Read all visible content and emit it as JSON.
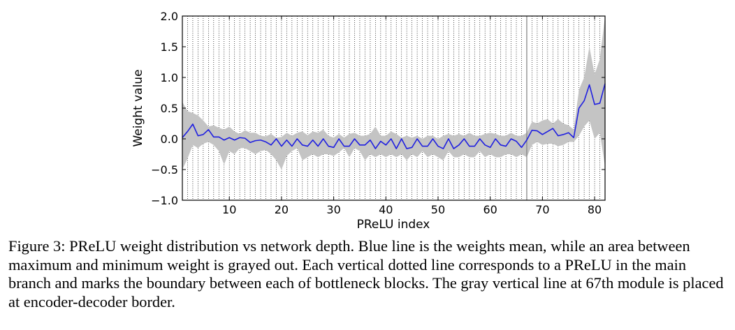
{
  "chart_data": {
    "type": "line",
    "xlabel": "PReLU index",
    "ylabel": "Weight value",
    "xlim": [
      1,
      82
    ],
    "ylim": [
      -1.0,
      2.0
    ],
    "xticks": [
      10,
      20,
      30,
      40,
      50,
      60,
      70,
      80
    ],
    "yticks": [
      2.0,
      1.5,
      1.0,
      0.5,
      0.0,
      -0.5,
      -1.0
    ],
    "xtick_labels": [
      "10",
      "20",
      "30",
      "40",
      "50",
      "60",
      "70",
      "80"
    ],
    "ytick_labels": [
      "2.0",
      "1.5",
      "1.0",
      "0.5",
      "0.0",
      "−0.5",
      "−1.0"
    ],
    "grid": "vertical dotted lines at each main-branch PReLU",
    "encoder_decoder_border": 67,
    "colors": {
      "mean_line": "#1f1fe0",
      "range_fill": "#c4c4c4",
      "border_line": "#7f7f7f"
    },
    "series": [
      {
        "role": "mean",
        "x": [
          1,
          2,
          3,
          4,
          5,
          6,
          7,
          8,
          9,
          10,
          11,
          12,
          13,
          14,
          15,
          16,
          17,
          18,
          19,
          20,
          21,
          22,
          23,
          24,
          25,
          26,
          27,
          28,
          29,
          30,
          31,
          32,
          33,
          34,
          35,
          36,
          37,
          38,
          39,
          40,
          41,
          42,
          43,
          44,
          45,
          46,
          47,
          48,
          49,
          50,
          51,
          52,
          53,
          54,
          55,
          56,
          57,
          58,
          59,
          60,
          61,
          62,
          63,
          64,
          65,
          66,
          67,
          68,
          69,
          70,
          71,
          72,
          73,
          74,
          75,
          76,
          77,
          78,
          79,
          80,
          81,
          82
        ],
        "values": [
          0.02,
          0.12,
          0.24,
          0.05,
          0.07,
          0.15,
          0.03,
          0.03,
          -0.02,
          0.02,
          -0.02,
          0.02,
          0.01,
          -0.06,
          -0.03,
          -0.02,
          -0.05,
          -0.1,
          0.0,
          -0.12,
          -0.02,
          -0.12,
          0.0,
          -0.1,
          -0.12,
          -0.02,
          -0.12,
          0.0,
          -0.12,
          -0.14,
          0.0,
          -0.12,
          -0.12,
          0.0,
          -0.1,
          -0.1,
          -0.02,
          -0.16,
          -0.04,
          -0.1,
          0.0,
          -0.16,
          0.0,
          -0.16,
          -0.14,
          0.0,
          -0.12,
          -0.12,
          0.0,
          -0.12,
          -0.16,
          0.0,
          -0.16,
          -0.1,
          0.0,
          -0.12,
          -0.12,
          0.0,
          -0.1,
          -0.14,
          0.0,
          -0.1,
          -0.12,
          0.0,
          -0.04,
          -0.14,
          -0.02,
          0.14,
          0.13,
          0.07,
          0.12,
          0.17,
          0.05,
          0.07,
          0.1,
          0.02,
          0.5,
          0.62,
          0.88,
          0.56,
          0.58,
          0.9
        ]
      },
      {
        "role": "max",
        "values": [
          0.6,
          0.45,
          0.42,
          0.38,
          0.3,
          0.2,
          0.22,
          0.18,
          0.15,
          0.2,
          0.12,
          0.08,
          0.14,
          0.1,
          0.1,
          0.05,
          0.04,
          0.08,
          0.02,
          0.03,
          0.1,
          0.05,
          0.1,
          0.12,
          0.06,
          0.12,
          0.1,
          0.15,
          0.05,
          0.02,
          0.08,
          0.02,
          0.08,
          0.1,
          0.05,
          0.05,
          0.08,
          0.2,
          0.05,
          0.05,
          0.12,
          0.08,
          0.02,
          0.05,
          0.02,
          0.05,
          0.0,
          0.05,
          0.05,
          0.0,
          0.05,
          0.08,
          0.05,
          0.08,
          0.05,
          0.1,
          0.05,
          0.05,
          0.08,
          0.1,
          0.08,
          0.05,
          0.05,
          0.1,
          0.05,
          0.05,
          0.1,
          0.28,
          0.25,
          0.3,
          0.32,
          0.25,
          0.32,
          0.25,
          0.22,
          0.15,
          0.8,
          1.0,
          1.5,
          1.05,
          1.3,
          2.0
        ]
      },
      {
        "role": "min",
        "values": [
          -0.5,
          -0.32,
          -0.1,
          -0.15,
          -0.08,
          -0.05,
          -0.1,
          -0.2,
          -0.42,
          -0.2,
          -0.25,
          -0.15,
          -0.15,
          -0.2,
          -0.25,
          -0.2,
          -0.18,
          -0.25,
          -0.35,
          -0.5,
          -0.28,
          -0.2,
          -0.15,
          -0.35,
          -0.3,
          -0.25,
          -0.3,
          -0.25,
          -0.25,
          -0.28,
          -0.22,
          -0.15,
          -0.3,
          -0.15,
          -0.2,
          -0.35,
          -0.25,
          -0.3,
          -0.25,
          -0.3,
          -0.25,
          -0.3,
          -0.25,
          -0.35,
          -0.25,
          -0.3,
          -0.2,
          -0.3,
          -0.25,
          -0.3,
          -0.35,
          -0.2,
          -0.3,
          -0.3,
          -0.25,
          -0.3,
          -0.3,
          -0.2,
          -0.3,
          -0.25,
          -0.3,
          -0.3,
          -0.25,
          -0.25,
          -0.3,
          -0.25,
          -0.3,
          -0.1,
          -0.05,
          -0.1,
          -0.08,
          -0.08,
          -0.12,
          -0.1,
          -0.05,
          -0.05,
          0.05,
          0.2,
          0.3,
          0.0,
          0.1,
          -0.45
        ]
      }
    ]
  },
  "caption": {
    "text": "Figure 3: PReLU weight distribution vs network depth. Blue line is the weights mean, while an area between maximum and minimum weight is grayed out. Each vertical dotted line corresponds to a PReLU in the main branch and marks the boundary between each of bottleneck blocks. The gray vertical line at 67th module is placed at encoder-decoder border."
  }
}
